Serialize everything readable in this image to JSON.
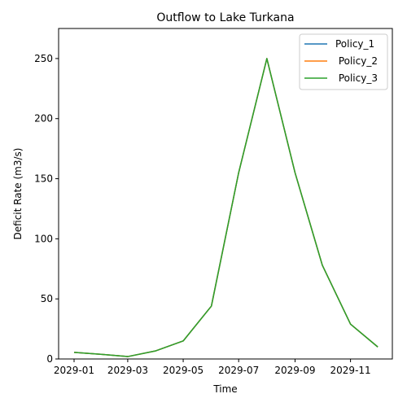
{
  "chart_data": {
    "type": "line",
    "title": "Outflow to Lake Turkana",
    "xlabel": "Time",
    "ylabel": "Deficit Rate (m3/s)",
    "x": [
      "2029-01-01",
      "2029-02-01",
      "2029-03-01",
      "2029-04-01",
      "2029-05-01",
      "2029-06-01",
      "2029-07-01",
      "2029-08-01",
      "2029-09-01",
      "2029-10-01",
      "2029-11-01",
      "2029-12-01"
    ],
    "x_ticks": [
      "2029-01",
      "2029-03",
      "2029-05",
      "2029-07",
      "2029-09",
      "2029-11"
    ],
    "xlim": [
      "2028-12-15",
      "2029-12-17"
    ],
    "ylim": [
      0,
      275
    ],
    "y_ticks": [
      0,
      50,
      100,
      150,
      200,
      250
    ],
    "grid": false,
    "legend_position": "top-right",
    "series": [
      {
        "name": "Policy_1",
        "color": "#1f77b4",
        "values": [
          5.5,
          3.8,
          2,
          6.8,
          15,
          44,
          155,
          250,
          155,
          78,
          29,
          10
        ]
      },
      {
        "name": " Policy_2",
        "color": "#ff7f0e",
        "values": [
          5.5,
          3.8,
          2,
          6.8,
          15,
          44,
          155,
          250,
          155,
          78,
          29,
          10
        ]
      },
      {
        "name": " Policy_3",
        "color": "#2ca02c",
        "values": [
          5.5,
          3.8,
          2,
          6.8,
          15,
          44,
          155,
          250,
          155,
          78,
          29,
          10
        ]
      }
    ]
  }
}
